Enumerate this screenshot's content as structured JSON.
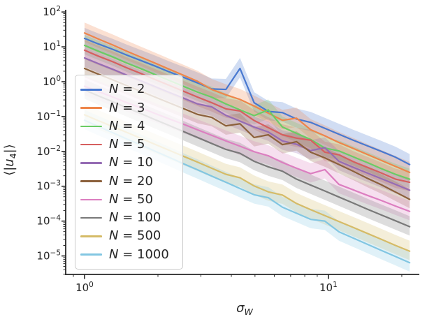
{
  "figure": {
    "xlabel": {
      "symbol": "σ",
      "subscript": "W"
    },
    "ylabel": {
      "open": "⟨|",
      "var": "u",
      "subscript": "4",
      "close": "|⟩"
    }
  },
  "chart_data": {
    "type": "line",
    "title": "",
    "xlabel": "sigma_W",
    "ylabel": "<|u4|>",
    "xscale": "log",
    "yscale": "log",
    "xlim": [
      0.837,
      23.6
    ],
    "ylim": [
      2.95e-06,
      115.8
    ],
    "grid": false,
    "legend_position": "upper left",
    "band": {
      "upper_factor": 2.0,
      "lower_factor": 1.8,
      "alpha": 0.25
    },
    "axes": {
      "tick_base": "10",
      "x_major_exponents": [
        0,
        1
      ],
      "y_major_exponents": [
        2,
        1,
        0,
        -1,
        -2,
        -3,
        -4,
        -5
      ]
    },
    "x": [
      1.0,
      1.14,
      1.31,
      1.49,
      1.71,
      1.95,
      2.23,
      2.55,
      2.91,
      3.32,
      3.8,
      4.34,
      4.96,
      5.67,
      6.48,
      7.4,
      8.46,
      9.67,
      11.05,
      12.63,
      14.43,
      16.49,
      18.85,
      21.54
    ],
    "series": [
      {
        "name": "N = 2",
        "label_prefix": "N",
        "label_rest": " = 2",
        "color": "#4878d0",
        "values": [
          17.5,
          12.1,
          8.4,
          5.8,
          4.0,
          2.8,
          1.9,
          1.33,
          0.92,
          0.62,
          0.6,
          2.4,
          0.25,
          0.14,
          0.13,
          0.085,
          0.068,
          0.046,
          0.031,
          0.021,
          0.0145,
          0.01,
          0.0068,
          0.0042
        ]
      },
      {
        "name": "N = 3",
        "label_prefix": "N",
        "label_rest": " = 3",
        "color": "#ee854a",
        "values": [
          25,
          16.8,
          11.2,
          7.5,
          5.0,
          3.4,
          2.26,
          1.52,
          1.02,
          0.6,
          0.42,
          0.31,
          0.2,
          0.125,
          0.078,
          0.09,
          0.042,
          0.028,
          0.018,
          0.0122,
          0.0082,
          0.0055,
          0.0037,
          0.0025
        ]
      },
      {
        "name": "N = 4",
        "label_prefix": "N",
        "label_rest": " = 4",
        "color": "#6acc64",
        "values": [
          11,
          7.5,
          5.1,
          3.44,
          2.34,
          1.59,
          1.08,
          0.73,
          0.5,
          0.36,
          0.23,
          0.156,
          0.106,
          0.155,
          0.05,
          0.033,
          0.022,
          0.0125,
          0.0103,
          0.007,
          0.0048,
          0.0032,
          0.0022,
          0.0016
        ]
      },
      {
        "name": "N = 5",
        "label_prefix": "N",
        "label_rest": " = 5",
        "color": "#d65f5f",
        "values": [
          8,
          5.4,
          3.7,
          2.5,
          1.7,
          1.15,
          0.78,
          0.53,
          0.36,
          0.25,
          0.166,
          0.145,
          0.077,
          0.048,
          0.03,
          0.024,
          0.021,
          0.0095,
          0.008,
          0.0051,
          0.0035,
          0.0024,
          0.0016,
          0.0013
        ]
      },
      {
        "name": "N = 10",
        "label_prefix": "N",
        "label_rest": " = 10",
        "color": "#956cb4",
        "values": [
          4.8,
          3.3,
          2.25,
          1.54,
          1.05,
          0.72,
          0.49,
          0.336,
          0.23,
          0.19,
          0.108,
          0.074,
          0.05,
          0.036,
          0.02,
          0.016,
          0.0105,
          0.0128,
          0.0052,
          0.0035,
          0.0024,
          0.00165,
          0.00113,
          0.00077
        ]
      },
      {
        "name": "N = 20",
        "label_prefix": "N",
        "label_rest": " = 20",
        "color": "#8c613c",
        "values": [
          2.4,
          1.64,
          1.12,
          0.77,
          0.525,
          0.36,
          0.246,
          0.168,
          0.115,
          0.095,
          0.054,
          0.062,
          0.025,
          0.03,
          0.0156,
          0.019,
          0.0095,
          0.0065,
          0.0042,
          0.0027,
          0.0017,
          0.0011,
          0.00068,
          0.00042
        ]
      },
      {
        "name": "N = 50",
        "label_prefix": "N",
        "label_rest": " = 50",
        "color": "#dc7ec0",
        "values": [
          0.74,
          0.52,
          0.36,
          0.251,
          0.175,
          0.122,
          0.085,
          0.06,
          0.0415,
          0.029,
          0.02,
          0.0141,
          0.0098,
          0.0075,
          0.0048,
          0.0033,
          0.0023,
          0.003,
          0.00113,
          0.00079,
          0.00055,
          0.00039,
          0.00027,
          0.00019
        ]
      },
      {
        "name": "N = 100",
        "label_prefix": "N",
        "label_rest": " = 100",
        "color": "#797979",
        "values": [
          0.58,
          0.39,
          0.264,
          0.178,
          0.12,
          0.081,
          0.055,
          0.037,
          0.025,
          0.0169,
          0.0114,
          0.0088,
          0.0052,
          0.0036,
          0.0027,
          0.0016,
          0.00108,
          0.00073,
          0.00049,
          0.00033,
          0.00022,
          0.00015,
          0.000102,
          6.9e-05
        ]
      },
      {
        "name": "N = 500",
        "label_prefix": "N",
        "label_rest": " = 500",
        "color": "#d5bb67",
        "values": [
          0.112,
          0.076,
          0.051,
          0.035,
          0.0234,
          0.0158,
          0.0107,
          0.0072,
          0.0049,
          0.0033,
          0.0022,
          0.00175,
          0.00102,
          0.00069,
          0.00056,
          0.00032,
          0.000213,
          0.000144,
          9.7e-05,
          6.6e-05,
          4.45e-05,
          3e-05,
          2e-05,
          1.37e-05
        ]
      },
      {
        "name": "N = 1000",
        "label_prefix": "N",
        "label_rest": " = 1000",
        "color": "#82c6e2",
        "values": [
          0.078,
          0.052,
          0.034,
          0.0228,
          0.0152,
          0.0101,
          0.0067,
          0.0044,
          0.00295,
          0.00196,
          0.0013,
          0.00086,
          0.00057,
          0.00047,
          0.00025,
          0.000168,
          0.000112,
          0.0001,
          4.92e-05,
          3.27e-05,
          2.17e-05,
          1.44e-05,
          9.6e-06,
          6.4e-06
        ]
      }
    ]
  }
}
